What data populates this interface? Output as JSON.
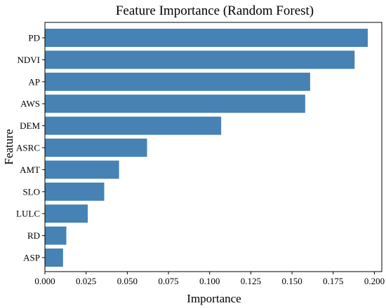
{
  "chart_data": {
    "type": "bar",
    "orientation": "horizontal",
    "title": "Feature Importance (Random Forest)",
    "xlabel": "Importance",
    "ylabel": "Feature",
    "categories": [
      "PD",
      "NDVI",
      "AP",
      "AWS",
      "DEM",
      "ASRC",
      "AMT",
      "SLO",
      "LULC",
      "RD",
      "ASP"
    ],
    "values": [
      0.196,
      0.188,
      0.161,
      0.158,
      0.107,
      0.062,
      0.045,
      0.036,
      0.026,
      0.013,
      0.011
    ],
    "xlim": [
      0.0,
      0.2045
    ],
    "xticks": [
      "0.000",
      "0.025",
      "0.050",
      "0.075",
      "0.100",
      "0.125",
      "0.150",
      "0.175",
      "0.200"
    ],
    "bar_color": "#4682b4",
    "grid": false
  }
}
